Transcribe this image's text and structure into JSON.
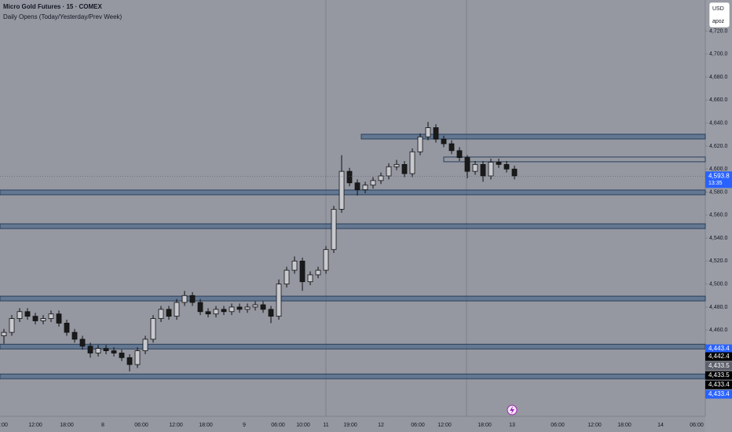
{
  "chart_data": {
    "type": "candlestick",
    "title": "Micro Gold Futures · 15 · COMEX",
    "subtitle": "Daily Opens (Today/Yesterday/Prev Week)",
    "currency": "USD",
    "account": "apoz",
    "up_color": "#c7c9cf",
    "down_color": "#1a1a1a",
    "zone_color": "#3d5f86",
    "ylim": [
      4385,
      4747
    ],
    "yticks": [
      {
        "value": 4460,
        "label": "4,460.0"
      },
      {
        "value": 4480,
        "label": "4,480.0"
      },
      {
        "value": 4500,
        "label": "4,500.0"
      },
      {
        "value": 4520,
        "label": "4,520.0"
      },
      {
        "value": 4540,
        "label": "4,540.0"
      },
      {
        "value": 4560,
        "label": "4,560.0"
      },
      {
        "value": 4580,
        "label": "4,580.0"
      },
      {
        "value": 4600,
        "label": "4,600.0"
      },
      {
        "value": 4620,
        "label": "4,620.0"
      },
      {
        "value": 4640,
        "label": "4,640.0"
      },
      {
        "value": 4660,
        "label": "4,660.0"
      },
      {
        "value": 4680,
        "label": "4,680.0"
      },
      {
        "value": 4700,
        "label": "4,700.0"
      },
      {
        "value": 4720,
        "label": "4,720.0"
      }
    ],
    "x_labels": [
      ":00",
      "12:00",
      "18:00",
      "8",
      "06:00",
      "12:00",
      "18:00",
      "9",
      "06:00",
      "10:00",
      "11",
      "19:00",
      "12",
      "06:00",
      "12:00",
      "18:00",
      "13",
      "06:00",
      "12:00",
      "18:00",
      "14",
      "06:00"
    ],
    "open": [
      4455,
      4458,
      4470,
      4476,
      4472,
      4468,
      4470,
      4474,
      4466,
      4458,
      4452,
      4446,
      4440,
      4444,
      4442,
      4440,
      4436,
      4430,
      4442,
      4452,
      4470,
      4478,
      4472,
      4484,
      4490,
      4484,
      4476,
      4474,
      4478,
      4476,
      4480,
      4478,
      4480,
      4482,
      4478,
      4472,
      4500,
      4512,
      4520,
      4502,
      4508,
      4512,
      4530,
      4565,
      4598,
      4588,
      4582,
      4586,
      4590,
      4594,
      4602,
      4604,
      4596,
      4615,
      4628,
      4636,
      4626,
      4622,
      4616,
      4610,
      4598,
      4604,
      4594,
      4606,
      4604,
      4600
    ],
    "high": [
      4461,
      4473,
      4479,
      4479,
      4475,
      4473,
      4477,
      4477,
      4469,
      4461,
      4455,
      4449,
      4447,
      4447,
      4445,
      4443,
      4439,
      4445,
      4455,
      4473,
      4481,
      4481,
      4487,
      4494,
      4493,
      4487,
      4479,
      4481,
      4481,
      4483,
      4483,
      4483,
      4485,
      4485,
      4481,
      4504,
      4515,
      4524,
      4523,
      4511,
      4515,
      4533,
      4568,
      4612,
      4601,
      4591,
      4589,
      4593,
      4597,
      4605,
      4608,
      4607,
      4618,
      4631,
      4641,
      4639,
      4629,
      4625,
      4619,
      4612,
      4607,
      4607,
      4609,
      4609,
      4607,
      4603
    ],
    "low": [
      4448,
      4455,
      4467,
      4469,
      4465,
      4465,
      4467,
      4463,
      4455,
      4449,
      4443,
      4436,
      4437,
      4439,
      4437,
      4433,
      4424,
      4427,
      4439,
      4449,
      4467,
      4469,
      4469,
      4481,
      4481,
      4473,
      4471,
      4471,
      4473,
      4473,
      4475,
      4475,
      4477,
      4475,
      4466,
      4469,
      4497,
      4509,
      4494,
      4499,
      4505,
      4509,
      4527,
      4562,
      4585,
      4577,
      4579,
      4583,
      4587,
      4591,
      4599,
      4593,
      4593,
      4612,
      4625,
      4623,
      4619,
      4613,
      4607,
      4592,
      4595,
      4589,
      4591,
      4601,
      4597,
      4591
    ],
    "close": [
      4458,
      4470,
      4476,
      4472,
      4468,
      4470,
      4474,
      4466,
      4458,
      4452,
      4446,
      4440,
      4444,
      4442,
      4440,
      4436,
      4430,
      4442,
      4452,
      4470,
      4478,
      4472,
      4484,
      4490,
      4484,
      4476,
      4474,
      4478,
      4476,
      4480,
      4478,
      4480,
      4482,
      4478,
      4472,
      4500,
      4512,
      4520,
      4502,
      4508,
      4512,
      4530,
      4565,
      4598,
      4588,
      4582,
      4586,
      4590,
      4594,
      4602,
      4604,
      4596,
      4615,
      4628,
      4636,
      4626,
      4622,
      4616,
      4610,
      4598,
      4604,
      4594,
      4606,
      4604,
      4600,
      4594
    ],
    "zones": [
      4628.2,
      4608.4,
      4579.7,
      4550.3,
      4487.4,
      4445.6,
      4419.7
    ],
    "current": {
      "value": 4593.8,
      "label": "4,593.8",
      "countdown": "13:35"
    },
    "price_labels": [
      {
        "value": 4443.4,
        "label": "4,443.4",
        "color": "#2962ff"
      },
      {
        "value": 4442.4,
        "label": "4,442.4",
        "color": "#000000"
      },
      {
        "value": 4433.5,
        "label": "4,433.5",
        "color": "#5d606b"
      },
      {
        "value": 4433.5,
        "label": "4,433.5",
        "color": "#000000"
      },
      {
        "value": 4433.4,
        "label": "4,433.4",
        "color": "#000000"
      },
      {
        "value": 4433.4,
        "label": "4,433.4",
        "color": "#2962ff"
      }
    ]
  }
}
